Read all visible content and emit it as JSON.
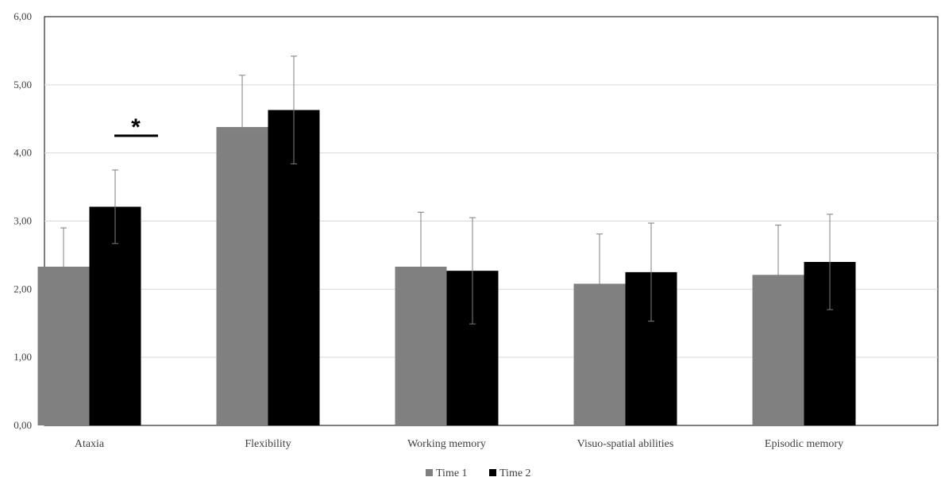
{
  "chart_data": {
    "type": "bar",
    "categories": [
      "Ataxia",
      "Flexibility",
      "Working memory",
      "Visuo-spatial abilities",
      "Episodic memory"
    ],
    "series": [
      {
        "name": "Time 1",
        "color": "#808080",
        "values": [
          2.33,
          4.38,
          2.33,
          2.08,
          2.21
        ],
        "error": [
          0.57,
          0.76,
          0.8,
          0.73,
          0.73
        ]
      },
      {
        "name": "Time 2",
        "color": "#000000",
        "values": [
          3.21,
          4.63,
          2.27,
          2.25,
          2.4
        ],
        "error": [
          0.54,
          0.79,
          0.78,
          0.72,
          0.7
        ]
      }
    ],
    "ylim": [
      0,
      6
    ],
    "yticks": [
      "0,00",
      "1,00",
      "2,00",
      "3,00",
      "4,00",
      "5,00",
      "6,00"
    ],
    "title": "",
    "xlabel": "",
    "ylabel": "",
    "grid": true,
    "legend_position": "bottom-center",
    "annotations": [
      {
        "text": "*",
        "category": "Ataxia",
        "type": "significance"
      }
    ]
  }
}
